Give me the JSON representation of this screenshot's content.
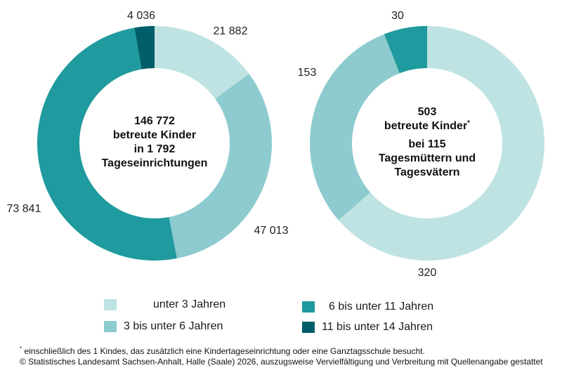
{
  "colors": {
    "age_0_3": "#bfe3e3",
    "age_3_6": "#8dcbcf",
    "age_6_11": "#1f9a9e",
    "age_11_14": "#005e6a"
  },
  "chart_data": [
    {
      "type": "pie",
      "variant": "donut",
      "categories": [
        "unter 3 Jahren",
        "3 bis unter 6 Jahren",
        "6 bis unter 11 Jahren",
        "11 bis unter 14 Jahren"
      ],
      "values": [
        21882,
        47013,
        73841,
        4036
      ],
      "value_labels": [
        "21 882",
        "47 013",
        "73 841",
        "4 036"
      ],
      "center_text": [
        "146 772",
        "betreute Kinder",
        "in 1 792",
        "Tageseinrichtungen"
      ]
    },
    {
      "type": "pie",
      "variant": "donut",
      "categories": [
        "unter 3 Jahren",
        "3 bis unter 6 Jahren",
        "6 bis unter 11 Jahren"
      ],
      "values": [
        320,
        153,
        30
      ],
      "value_labels": [
        "320",
        "153",
        "30"
      ],
      "center_text": [
        "503",
        "betreute Kinder",
        "bei 115",
        "Tagesmüttern und",
        "Tagesvätern"
      ],
      "center_marker": "*"
    }
  ],
  "legend": [
    {
      "label": "unter 3 Jahren",
      "color": "#bfe3e3"
    },
    {
      "label": "3 bis unter 6 Jahren",
      "color": "#8dcbcf"
    },
    {
      "label": "6 bis unter 11 Jahren",
      "color": "#1f9a9e"
    },
    {
      "label": "11 bis unter 14 Jahren",
      "color": "#005e6a"
    }
  ],
  "footnote": {
    "marker": "*",
    "text": "einschließlich des 1 Kindes, das zusätzlich eine Kindertageseinrichtung oder eine Ganztagsschule besucht.",
    "copyright": "© Statistisches Landesamt Sachsen-Anhalt, Halle (Saale) 2026, auszugsweise Vervielfältigung und Verbreitung mit Quellenangabe gestattet"
  }
}
